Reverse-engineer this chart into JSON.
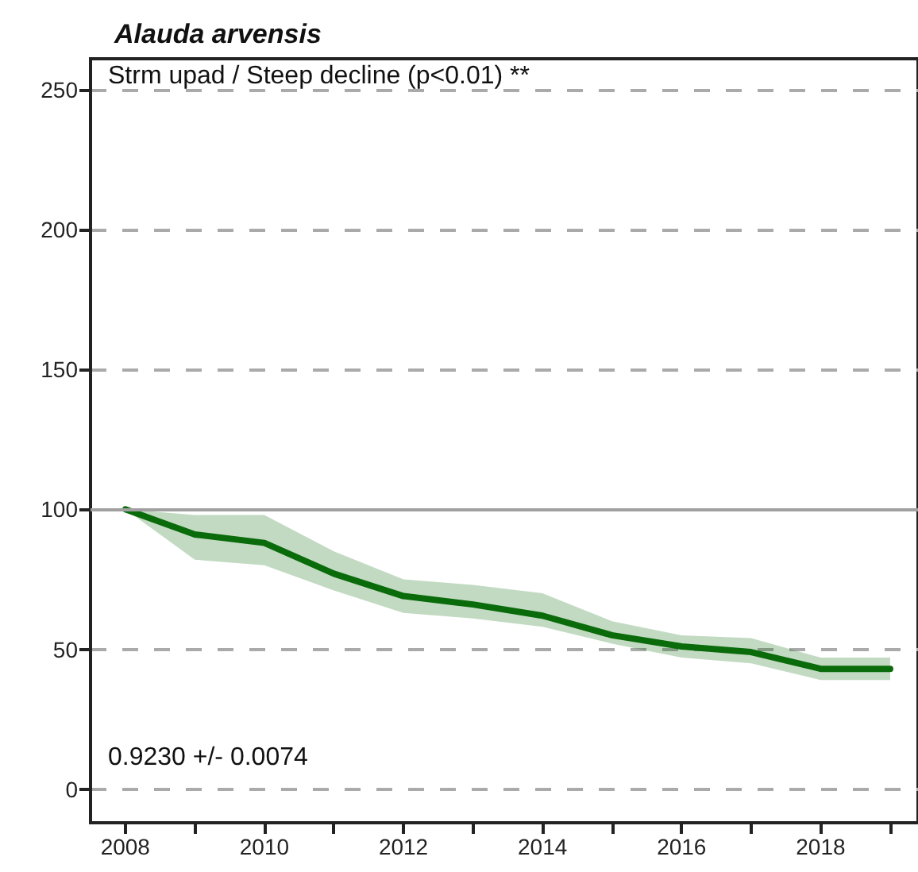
{
  "chart_data": {
    "type": "line",
    "title": "Alauda arvensis",
    "x": [
      2008,
      2009,
      2010,
      2011,
      2012,
      2013,
      2014,
      2015,
      2016,
      2017,
      2018,
      2019
    ],
    "series": [
      {
        "color": "#0a6b0a",
        "values": [
          100,
          91,
          88,
          77,
          69,
          66,
          62,
          55,
          51,
          49,
          43,
          43
        ],
        "lower": [
          100,
          82,
          80,
          71,
          63,
          61,
          58,
          52,
          47,
          45,
          39,
          39
        ],
        "upper": [
          100,
          98,
          98,
          85,
          75,
          73,
          70,
          60,
          55,
          54,
          47,
          47
        ]
      }
    ],
    "xlim": [
      2007.5,
      2019.4
    ],
    "ylim": [
      -12,
      261
    ],
    "xticks": [
      2008,
      {
        "value": 2009,
        "label": null
      },
      2010,
      {
        "value": 2011,
        "label": null
      },
      2012,
      {
        "value": 2013,
        "label": null
      },
      2014,
      {
        "value": 2015,
        "label": null
      },
      2016,
      {
        "value": 2017,
        "label": null
      },
      2018,
      {
        "value": 2019,
        "label": null
      }
    ],
    "yticks": [
      0,
      50,
      100,
      150,
      200,
      250
    ],
    "grid": "y",
    "marker": "none",
    "line_style": "solid",
    "ref_lines": [
      {
        "axis": "y",
        "value": 100,
        "label": null,
        "color": "#a0a0a0",
        "line_style": "solid"
      }
    ],
    "annotations": [
      "Strm upad / Steep decline (p<0.01) **",
      "0.9230 +/- 0.0074"
    ]
  }
}
